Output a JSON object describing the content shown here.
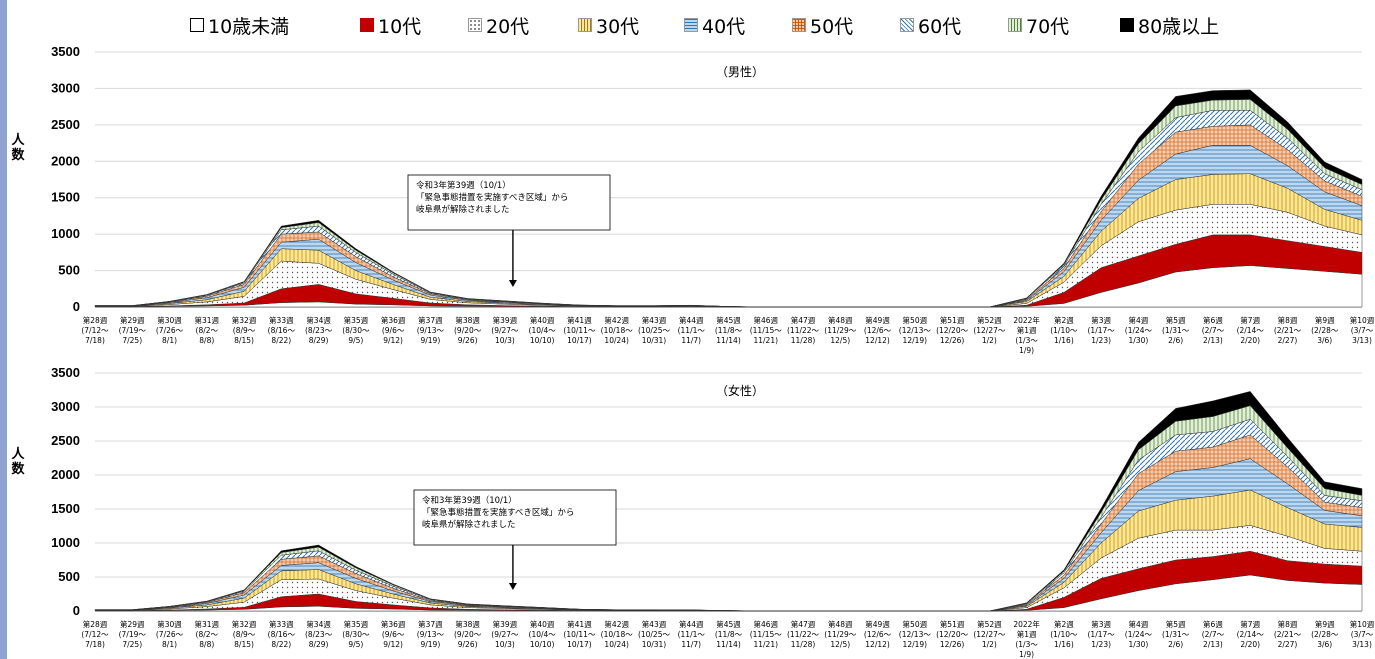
{
  "legend": {
    "items": [
      {
        "label": "10歳未満",
        "fill": "#ffffff",
        "pattern": "none"
      },
      {
        "label": "10代",
        "fill": "#c00000",
        "pattern": "solid"
      },
      {
        "label": "20代",
        "fill": "#ffffff",
        "pattern": "dots"
      },
      {
        "label": "30代",
        "fill": "#ffe699",
        "pattern": "vlines"
      },
      {
        "label": "40代",
        "fill": "#bdd7ee",
        "pattern": "hlines"
      },
      {
        "label": "50代",
        "fill": "#f8cbad",
        "pattern": "grid"
      },
      {
        "label": "60代",
        "fill": "#9dc3e6",
        "pattern": "diag"
      },
      {
        "label": "70代",
        "fill": "#e2efda",
        "pattern": "vlines"
      },
      {
        "label": "80歳以上",
        "fill": "#000000",
        "pattern": "solid"
      }
    ]
  },
  "chart_data": [
    {
      "type": "area",
      "stacked": true,
      "title": "（男性）",
      "ylabel": "人\n数",
      "ylim": [
        0,
        3500
      ],
      "yticks": [
        "0",
        "500",
        "1000",
        "1500",
        "2000",
        "2500",
        "3000",
        "3500"
      ],
      "grid": true,
      "legend_position": "top",
      "categories": [
        [
          "第28週",
          "(7/12～",
          "7/18)"
        ],
        [
          "第29週",
          "(7/19～",
          "7/25)"
        ],
        [
          "第30週",
          "(7/26～",
          "8/1)"
        ],
        [
          "第31週",
          "(8/2～",
          "8/8)"
        ],
        [
          "第32週",
          "(8/9～",
          "8/15)"
        ],
        [
          "第33週",
          "(8/16～",
          "8/22)"
        ],
        [
          "第34週",
          "(8/23～",
          "8/29)"
        ],
        [
          "第35週",
          "(8/30～",
          "9/5)"
        ],
        [
          "第36週",
          "(9/6～",
          "9/12)"
        ],
        [
          "第37週",
          "(9/13～",
          "9/19)"
        ],
        [
          "第38週",
          "(9/20～",
          "9/26)"
        ],
        [
          "第39週",
          "(9/27～",
          "10/3)"
        ],
        [
          "第40週",
          "(10/4～",
          "10/10)"
        ],
        [
          "第41週",
          "(10/11～",
          "10/17)"
        ],
        [
          "第42週",
          "(10/18～",
          "10/24)"
        ],
        [
          "第43週",
          "(10/25～",
          "10/31)"
        ],
        [
          "第44週",
          "(11/1～",
          "11/7)"
        ],
        [
          "第45週",
          "(11/8～",
          "11/14)"
        ],
        [
          "第46週",
          "(11/15～",
          "11/21)"
        ],
        [
          "第47週",
          "(11/22～",
          "11/28)"
        ],
        [
          "第48週",
          "(11/29～",
          "12/5)"
        ],
        [
          "第49週",
          "(12/6～",
          "12/12)"
        ],
        [
          "第50週",
          "(12/13～",
          "12/19)"
        ],
        [
          "第51週",
          "(12/20～",
          "12/26)"
        ],
        [
          "第52週",
          "(12/27～",
          "1/2)"
        ],
        [
          "2022年",
          "第1週",
          "(1/3～",
          "1/9)"
        ],
        [
          "第2週",
          "(1/10～",
          "1/16)"
        ],
        [
          "第3週",
          "(1/17～",
          "1/23)"
        ],
        [
          "第4週",
          "(1/24～",
          "1/30)"
        ],
        [
          "第5週",
          "(1/31～",
          "2/6)"
        ],
        [
          "第6週",
          "(2/7～",
          "2/13)"
        ],
        [
          "第7週",
          "(2/14～",
          "2/20)"
        ],
        [
          "第8週",
          "(2/21～",
          "2/27)"
        ],
        [
          "第9週",
          "(2/28～",
          "3/6)"
        ],
        [
          "第10週",
          "(3/7～",
          "3/13)"
        ]
      ],
      "series": [
        {
          "name": "10歳未満",
          "values": [
            3,
            3,
            8,
            15,
            25,
            60,
            70,
            40,
            30,
            15,
            10,
            7,
            5,
            3,
            2,
            2,
            3,
            1,
            0,
            0,
            0,
            0,
            0,
            0,
            0,
            10,
            50,
            200,
            330,
            480,
            540,
            570,
            530,
            490,
            450
          ]
        },
        {
          "name": "10代",
          "values": [
            2,
            2,
            7,
            15,
            30,
            190,
            240,
            140,
            90,
            40,
            20,
            12,
            8,
            3,
            2,
            2,
            3,
            1,
            0,
            0,
            0,
            0,
            0,
            0,
            0,
            15,
            150,
            340,
            370,
            380,
            450,
            420,
            380,
            340,
            300
          ]
        },
        {
          "name": "20代",
          "values": [
            4,
            4,
            18,
            40,
            90,
            380,
            290,
            200,
            120,
            50,
            28,
            20,
            12,
            6,
            4,
            4,
            4,
            1,
            0,
            0,
            0,
            0,
            0,
            0,
            0,
            25,
            140,
            300,
            470,
            470,
            420,
            420,
            390,
            280,
            240
          ]
        },
        {
          "name": "30代",
          "values": [
            3,
            3,
            15,
            30,
            70,
            170,
            180,
            120,
            70,
            30,
            18,
            13,
            8,
            4,
            3,
            3,
            3,
            1,
            0,
            0,
            0,
            0,
            0,
            0,
            0,
            25,
            80,
            200,
            320,
            420,
            410,
            420,
            330,
            230,
            200
          ]
        },
        {
          "name": "40代",
          "values": [
            3,
            3,
            12,
            28,
            55,
            90,
            150,
            110,
            60,
            28,
            15,
            12,
            8,
            4,
            3,
            3,
            3,
            1,
            0,
            0,
            0,
            0,
            0,
            0,
            0,
            15,
            65,
            150,
            250,
            350,
            400,
            390,
            310,
            240,
            200
          ]
        },
        {
          "name": "50代",
          "values": [
            2,
            2,
            8,
            20,
            40,
            110,
            100,
            80,
            45,
            18,
            10,
            8,
            5,
            3,
            2,
            2,
            3,
            1,
            0,
            0,
            0,
            0,
            0,
            0,
            0,
            15,
            45,
            120,
            220,
            300,
            260,
            280,
            220,
            150,
            130
          ]
        },
        {
          "name": "60代",
          "values": [
            1,
            1,
            5,
            12,
            20,
            60,
            80,
            60,
            35,
            12,
            8,
            6,
            3,
            2,
            1,
            1,
            3,
            1,
            0,
            0,
            0,
            0,
            0,
            0,
            0,
            10,
            35,
            100,
            170,
            200,
            220,
            200,
            160,
            100,
            90
          ]
        },
        {
          "name": "70代",
          "values": [
            1,
            1,
            3,
            8,
            12,
            30,
            50,
            30,
            20,
            8,
            5,
            4,
            2,
            1,
            1,
            1,
            2,
            0,
            0,
            0,
            0,
            0,
            0,
            0,
            0,
            5,
            20,
            60,
            110,
            160,
            140,
            150,
            120,
            80,
            70
          ]
        },
        {
          "name": "80歳以上",
          "values": [
            1,
            1,
            2,
            4,
            8,
            20,
            30,
            20,
            10,
            5,
            3,
            3,
            2,
            1,
            1,
            1,
            1,
            0,
            0,
            0,
            0,
            0,
            0,
            0,
            0,
            5,
            15,
            50,
            80,
            130,
            130,
            130,
            100,
            80,
            70
          ]
        }
      ],
      "annotation": {
        "lines": [
          "令和3年第39週（10/1）",
          "「緊急事態措置を実施すべき区域」から",
          "岐阜県が解除されました"
        ],
        "arrow_category_index": 11
      }
    },
    {
      "type": "area",
      "stacked": true,
      "title": "（女性）",
      "ylabel": "人\n数",
      "ylim": [
        0,
        3500
      ],
      "yticks": [
        "0",
        "500",
        "1000",
        "1500",
        "2000",
        "2500",
        "3000",
        "3500"
      ],
      "grid": true,
      "legend_position": "top",
      "categories": [
        [
          "第28週",
          "(7/12～",
          "7/18)"
        ],
        [
          "第29週",
          "(7/19～",
          "7/25)"
        ],
        [
          "第30週",
          "(7/26～",
          "8/1)"
        ],
        [
          "第31週",
          "(8/2～",
          "8/8)"
        ],
        [
          "第32週",
          "(8/9～",
          "8/15)"
        ],
        [
          "第33週",
          "(8/16～",
          "8/22)"
        ],
        [
          "第34週",
          "(8/23～",
          "8/29)"
        ],
        [
          "第35週",
          "(8/30～",
          "9/5)"
        ],
        [
          "第36週",
          "(9/6～",
          "9/12)"
        ],
        [
          "第37週",
          "(9/13～",
          "9/19)"
        ],
        [
          "第38週",
          "(9/20～",
          "9/26)"
        ],
        [
          "第39週",
          "(9/27～",
          "10/3)"
        ],
        [
          "第40週",
          "(10/4～",
          "10/10)"
        ],
        [
          "第41週",
          "(10/11～",
          "10/17)"
        ],
        [
          "第42週",
          "(10/18～",
          "10/24)"
        ],
        [
          "第43週",
          "(10/25～",
          "10/31)"
        ],
        [
          "第44週",
          "(11/1～",
          "11/7)"
        ],
        [
          "第45週",
          "(11/8～",
          "11/14)"
        ],
        [
          "第46週",
          "(11/15～",
          "11/21)"
        ],
        [
          "第47週",
          "(11/22～",
          "11/28)"
        ],
        [
          "第48週",
          "(11/29～",
          "12/5)"
        ],
        [
          "第49週",
          "(12/6～",
          "12/12)"
        ],
        [
          "第50週",
          "(12/13～",
          "12/19)"
        ],
        [
          "第51週",
          "(12/20～",
          "12/26)"
        ],
        [
          "第52週",
          "(12/27～",
          "1/2)"
        ],
        [
          "2022年",
          "第1週",
          "(1/3～",
          "1/9)"
        ],
        [
          "第2週",
          "(1/10～",
          "1/16)"
        ],
        [
          "第3週",
          "(1/17～",
          "1/23)"
        ],
        [
          "第4週",
          "(1/24～",
          "1/30)"
        ],
        [
          "第5週",
          "(1/31～",
          "2/6)"
        ],
        [
          "第6週",
          "(2/7～",
          "2/13)"
        ],
        [
          "第7週",
          "(2/14～",
          "2/20)"
        ],
        [
          "第8週",
          "(2/21～",
          "2/27)"
        ],
        [
          "第9週",
          "(2/28～",
          "3/6)"
        ],
        [
          "第10週",
          "(3/7～",
          "3/13)"
        ]
      ],
      "series": [
        {
          "name": "10歳未満",
          "values": [
            3,
            3,
            8,
            15,
            25,
            60,
            70,
            40,
            30,
            15,
            10,
            7,
            5,
            3,
            2,
            2,
            2,
            1,
            0,
            0,
            0,
            0,
            0,
            0,
            0,
            10,
            50,
            180,
            300,
            400,
            460,
            530,
            450,
            410,
            390
          ]
        },
        {
          "name": "10代",
          "values": [
            2,
            2,
            7,
            15,
            30,
            150,
            180,
            100,
            60,
            30,
            15,
            10,
            8,
            3,
            2,
            2,
            2,
            1,
            0,
            0,
            0,
            0,
            0,
            0,
            0,
            15,
            150,
            300,
            320,
            350,
            340,
            350,
            290,
            280,
            270
          ]
        },
        {
          "name": "20代",
          "values": [
            4,
            4,
            15,
            35,
            75,
            250,
            220,
            160,
            100,
            45,
            25,
            18,
            12,
            6,
            4,
            4,
            3,
            1,
            0,
            0,
            0,
            0,
            0,
            0,
            0,
            25,
            140,
            300,
            450,
            440,
            390,
            380,
            360,
            230,
            220
          ]
        },
        {
          "name": "30代",
          "values": [
            3,
            3,
            12,
            25,
            60,
            130,
            140,
            100,
            60,
            28,
            16,
            12,
            8,
            4,
            3,
            3,
            2,
            1,
            0,
            0,
            0,
            0,
            0,
            0,
            0,
            20,
            80,
            220,
            400,
            440,
            500,
            520,
            420,
            360,
            350
          ]
        },
        {
          "name": "40代",
          "values": [
            3,
            3,
            10,
            20,
            45,
            80,
            100,
            80,
            45,
            22,
            12,
            10,
            7,
            4,
            3,
            3,
            2,
            1,
            0,
            0,
            0,
            0,
            0,
            0,
            0,
            15,
            60,
            150,
            300,
            420,
            420,
            460,
            350,
            200,
            170
          ]
        },
        {
          "name": "50代",
          "values": [
            2,
            2,
            7,
            15,
            35,
            90,
            100,
            70,
            40,
            15,
            10,
            8,
            5,
            3,
            2,
            2,
            2,
            1,
            0,
            0,
            0,
            0,
            0,
            0,
            0,
            15,
            45,
            130,
            250,
            300,
            300,
            350,
            250,
            120,
            120
          ]
        },
        {
          "name": "60代",
          "values": [
            1,
            1,
            5,
            10,
            20,
            60,
            75,
            50,
            30,
            12,
            8,
            6,
            4,
            2,
            1,
            1,
            1,
            0,
            0,
            0,
            0,
            0,
            0,
            0,
            0,
            10,
            35,
            100,
            200,
            240,
            230,
            230,
            150,
            100,
            100
          ]
        },
        {
          "name": "70代",
          "values": [
            1,
            1,
            3,
            6,
            12,
            40,
            55,
            35,
            20,
            8,
            5,
            4,
            2,
            1,
            1,
            1,
            1,
            0,
            0,
            0,
            0,
            0,
            0,
            0,
            0,
            5,
            25,
            70,
            150,
            200,
            220,
            200,
            130,
            100,
            80
          ]
        },
        {
          "name": "80歳以上",
          "values": [
            1,
            1,
            2,
            4,
            8,
            25,
            30,
            20,
            10,
            5,
            3,
            3,
            2,
            1,
            1,
            1,
            1,
            0,
            0,
            0,
            0,
            0,
            0,
            0,
            0,
            5,
            20,
            60,
            110,
            190,
            230,
            210,
            150,
            100,
            100
          ]
        }
      ],
      "annotation": {
        "lines": [
          "令和3年第39週（10/1）",
          "「緊急事態措置を実施すべき区域」から",
          "岐阜県が解除されました"
        ],
        "arrow_category_index": 11
      }
    }
  ]
}
